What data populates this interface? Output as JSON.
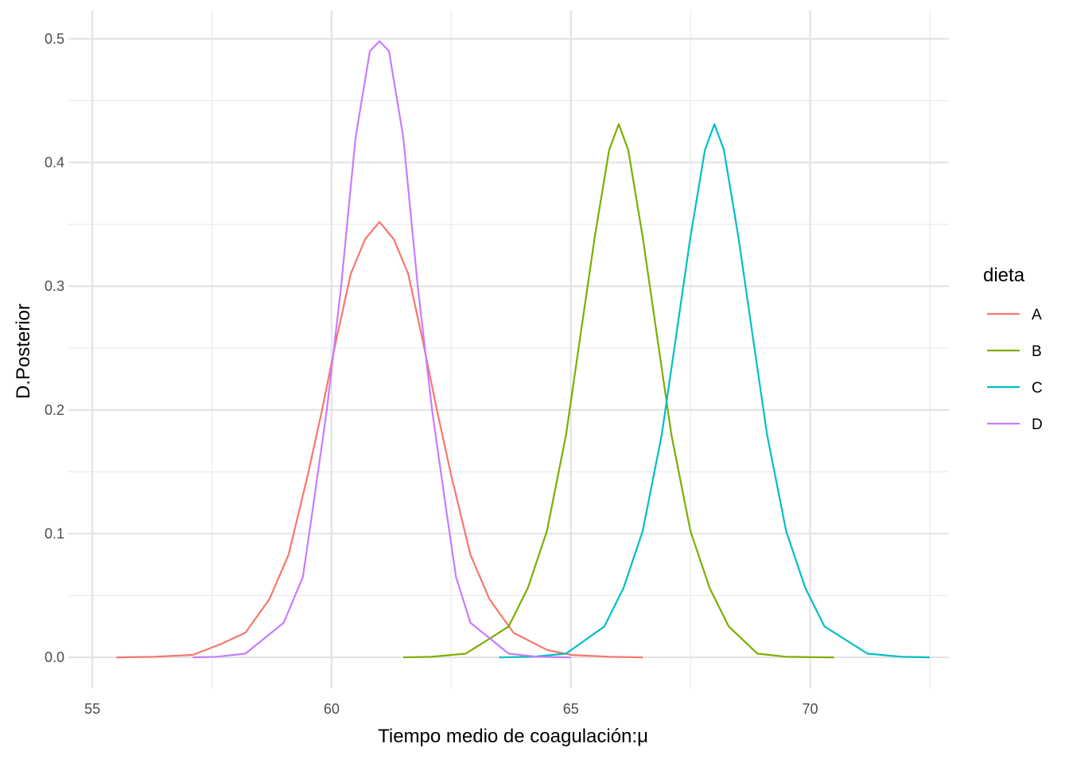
{
  "chart_data": {
    "type": "line",
    "xlabel": "Tiempo medio de coagulación:μ",
    "ylabel": "D.Posterior",
    "xlim": [
      54.5,
      72.9
    ],
    "ylim": [
      -0.025,
      0.523
    ],
    "x_ticks": [
      55,
      60,
      65,
      70
    ],
    "x_tick_labels": [
      "55",
      "60",
      "65",
      "70"
    ],
    "y_ticks": [
      0.0,
      0.1,
      0.2,
      0.3,
      0.4,
      0.5
    ],
    "y_tick_labels": [
      "0.0",
      "0.1",
      "0.2",
      "0.3",
      "0.4",
      "0.5"
    ],
    "grid": true,
    "legend": {
      "title": "dieta",
      "position": "right"
    },
    "series": [
      {
        "name": "A",
        "color": "#F8766D",
        "x": [
          55.5,
          56.3,
          57.1,
          57.7,
          58.2,
          58.7,
          59.1,
          59.5,
          59.8,
          60.1,
          60.4,
          60.7,
          61.0,
          61.3,
          61.6,
          61.9,
          62.2,
          62.5,
          62.9,
          63.3,
          63.8,
          64.5,
          65.0,
          65.8,
          66.5
        ],
        "y": [
          0.0,
          0.0005,
          0.002,
          0.011,
          0.02,
          0.047,
          0.083,
          0.147,
          0.2,
          0.257,
          0.31,
          0.338,
          0.352,
          0.338,
          0.31,
          0.257,
          0.2,
          0.147,
          0.083,
          0.047,
          0.02,
          0.006,
          0.002,
          0.0005,
          0.0
        ]
      },
      {
        "name": "B",
        "color": "#7CAE00",
        "x": [
          61.5,
          62.1,
          62.8,
          63.3,
          63.7,
          64.1,
          64.5,
          64.9,
          65.2,
          65.5,
          65.8,
          66.0,
          66.2,
          66.5,
          66.8,
          67.1,
          67.5,
          67.9,
          68.3,
          68.9,
          69.5,
          70.0,
          70.5
        ],
        "y": [
          0.0,
          0.0005,
          0.003,
          0.015,
          0.025,
          0.056,
          0.102,
          0.18,
          0.26,
          0.34,
          0.41,
          0.431,
          0.41,
          0.34,
          0.26,
          0.18,
          0.102,
          0.056,
          0.025,
          0.003,
          0.0005,
          0.0002,
          0.0
        ]
      },
      {
        "name": "C",
        "color": "#00BFC4",
        "x": [
          63.5,
          64.2,
          64.9,
          65.7,
          66.1,
          66.5,
          66.9,
          67.2,
          67.5,
          67.8,
          68.0,
          68.2,
          68.5,
          68.8,
          69.1,
          69.5,
          69.9,
          70.3,
          71.2,
          71.9,
          72.5
        ],
        "y": [
          0.0,
          0.0005,
          0.003,
          0.025,
          0.056,
          0.102,
          0.18,
          0.26,
          0.34,
          0.41,
          0.431,
          0.41,
          0.34,
          0.26,
          0.18,
          0.102,
          0.056,
          0.025,
          0.003,
          0.0005,
          0.0
        ]
      },
      {
        "name": "D",
        "color": "#C77CFF",
        "x": [
          57.1,
          57.6,
          58.2,
          59.0,
          59.4,
          59.6,
          59.9,
          60.2,
          60.5,
          60.8,
          61.0,
          61.2,
          61.5,
          61.8,
          62.1,
          62.4,
          62.6,
          62.9,
          63.7,
          64.3,
          65.0
        ],
        "y": [
          0.0,
          0.0005,
          0.003,
          0.028,
          0.065,
          0.118,
          0.2,
          0.3,
          0.42,
          0.49,
          0.498,
          0.49,
          0.42,
          0.3,
          0.2,
          0.118,
          0.065,
          0.028,
          0.003,
          0.0005,
          0.0
        ]
      }
    ]
  }
}
